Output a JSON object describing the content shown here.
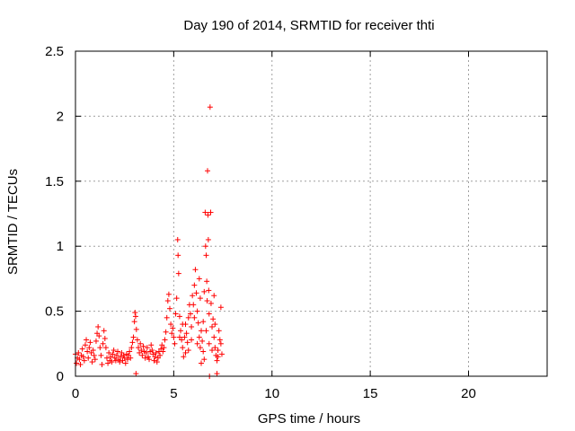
{
  "chart_data": {
    "type": "scatter",
    "title": "Day 190 of 2014, SRMTID for receiver thti",
    "xlabel": "GPS time / hours",
    "ylabel": "SRMTID / TECUs",
    "xlim": [
      0,
      24
    ],
    "ylim": [
      0,
      2.5
    ],
    "xticks": [
      0,
      5,
      10,
      15,
      20
    ],
    "yticks": [
      0,
      0.5,
      1,
      1.5,
      2,
      2.5
    ],
    "xtick_labels": [
      "0",
      "5",
      "10",
      "15",
      "20"
    ],
    "ytick_labels": [
      "0",
      "0.5",
      "1",
      "1.5",
      "2",
      "2.5"
    ],
    "grid": true,
    "marker": "+",
    "color": "#ff0000",
    "series": [
      {
        "name": "SRMTID",
        "points": [
          [
            0.0,
            0.17
          ],
          [
            0.05,
            0.1
          ],
          [
            0.1,
            0.14
          ],
          [
            0.15,
            0.18
          ],
          [
            0.2,
            0.13
          ],
          [
            0.25,
            0.09
          ],
          [
            0.3,
            0.16
          ],
          [
            0.35,
            0.21
          ],
          [
            0.4,
            0.15
          ],
          [
            0.45,
            0.12
          ],
          [
            0.5,
            0.24
          ],
          [
            0.55,
            0.28
          ],
          [
            0.6,
            0.19
          ],
          [
            0.65,
            0.14
          ],
          [
            0.7,
            0.22
          ],
          [
            0.75,
            0.26
          ],
          [
            0.8,
            0.18
          ],
          [
            0.85,
            0.11
          ],
          [
            0.9,
            0.2
          ],
          [
            0.95,
            0.16
          ],
          [
            1.0,
            0.13
          ],
          [
            1.05,
            0.27
          ],
          [
            1.1,
            0.33
          ],
          [
            1.15,
            0.38
          ],
          [
            1.2,
            0.31
          ],
          [
            1.25,
            0.22
          ],
          [
            1.3,
            0.16
          ],
          [
            1.35,
            0.09
          ],
          [
            1.4,
            0.25
          ],
          [
            1.45,
            0.35
          ],
          [
            1.5,
            0.29
          ],
          [
            1.55,
            0.22
          ],
          [
            1.6,
            0.14
          ],
          [
            1.65,
            0.1
          ],
          [
            1.7,
            0.18
          ],
          [
            1.75,
            0.12
          ],
          [
            1.8,
            0.15
          ],
          [
            1.85,
            0.11
          ],
          [
            1.9,
            0.17
          ],
          [
            1.95,
            0.2
          ],
          [
            2.0,
            0.14
          ],
          [
            2.05,
            0.12
          ],
          [
            2.1,
            0.16
          ],
          [
            2.15,
            0.19
          ],
          [
            2.2,
            0.13
          ],
          [
            2.25,
            0.11
          ],
          [
            2.3,
            0.15
          ],
          [
            2.35,
            0.18
          ],
          [
            2.4,
            0.12
          ],
          [
            2.45,
            0.16
          ],
          [
            2.5,
            0.14
          ],
          [
            2.55,
            0.1
          ],
          [
            2.6,
            0.17
          ],
          [
            2.65,
            0.13
          ],
          [
            2.7,
            0.16
          ],
          [
            2.75,
            0.19
          ],
          [
            2.8,
            0.14
          ],
          [
            2.85,
            0.22
          ],
          [
            2.9,
            0.26
          ],
          [
            2.95,
            0.3
          ],
          [
            3.0,
            0.42
          ],
          [
            3.03,
            0.49
          ],
          [
            3.06,
            0.46
          ],
          [
            3.08,
            0.02
          ],
          [
            3.1,
            0.36
          ],
          [
            3.15,
            0.28
          ],
          [
            3.2,
            0.22
          ],
          [
            3.25,
            0.18
          ],
          [
            3.3,
            0.25
          ],
          [
            3.35,
            0.2
          ],
          [
            3.4,
            0.16
          ],
          [
            3.45,
            0.23
          ],
          [
            3.5,
            0.19
          ],
          [
            3.55,
            0.14
          ],
          [
            3.6,
            0.18
          ],
          [
            3.65,
            0.22
          ],
          [
            3.7,
            0.15
          ],
          [
            3.75,
            0.13
          ],
          [
            3.8,
            0.19
          ],
          [
            3.85,
            0.24
          ],
          [
            3.9,
            0.2
          ],
          [
            3.95,
            0.17
          ],
          [
            4.0,
            0.12
          ],
          [
            4.05,
            0.15
          ],
          [
            4.1,
            0.18
          ],
          [
            4.15,
            0.11
          ],
          [
            4.2,
            0.14
          ],
          [
            4.25,
            0.19
          ],
          [
            4.3,
            0.16
          ],
          [
            4.35,
            0.21
          ],
          [
            4.4,
            0.24
          ],
          [
            4.45,
            0.19
          ],
          [
            4.5,
            0.22
          ],
          [
            4.55,
            0.28
          ],
          [
            4.6,
            0.34
          ],
          [
            4.65,
            0.45
          ],
          [
            4.7,
            0.58
          ],
          [
            4.75,
            0.63
          ],
          [
            4.8,
            0.52
          ],
          [
            4.85,
            0.4
          ],
          [
            4.9,
            0.33
          ],
          [
            4.95,
            0.37
          ],
          [
            5.0,
            0.3
          ],
          [
            5.05,
            0.25
          ],
          [
            5.1,
            0.48
          ],
          [
            5.15,
            0.6
          ],
          [
            5.2,
            1.05
          ],
          [
            5.22,
            0.93
          ],
          [
            5.25,
            0.79
          ],
          [
            5.3,
            0.46
          ],
          [
            5.35,
            0.35
          ],
          [
            5.4,
            0.28
          ],
          [
            5.45,
            0.22
          ],
          [
            5.5,
            0.15
          ],
          [
            5.55,
            0.3
          ],
          [
            5.6,
            0.4
          ],
          [
            5.65,
            0.33
          ],
          [
            5.7,
            0.26
          ],
          [
            5.75,
            0.45
          ],
          [
            5.8,
            0.55
          ],
          [
            5.85,
            0.48
          ],
          [
            5.9,
            0.38
          ],
          [
            5.95,
            0.62
          ],
          [
            6.0,
            0.55
          ],
          [
            6.05,
            0.7
          ],
          [
            6.1,
            0.82
          ],
          [
            6.15,
            0.64
          ],
          [
            6.2,
            0.5
          ],
          [
            6.25,
            0.41
          ],
          [
            6.3,
            0.3
          ],
          [
            6.35,
            0.22
          ],
          [
            6.4,
            0.35
          ],
          [
            6.45,
            0.27
          ],
          [
            6.5,
            0.19
          ],
          [
            6.55,
            0.13
          ],
          [
            6.6,
            1.26
          ],
          [
            6.62,
            1.0
          ],
          [
            6.65,
            0.93
          ],
          [
            6.68,
            0.73
          ],
          [
            6.7,
            0.58
          ],
          [
            6.72,
            1.58
          ],
          [
            6.74,
            1.24
          ],
          [
            6.76,
            1.05
          ],
          [
            6.78,
            0.66
          ],
          [
            6.8,
            0.48
          ],
          [
            6.82,
            0.0
          ],
          [
            6.85,
            2.07
          ],
          [
            6.88,
            1.26
          ],
          [
            6.9,
            0.56
          ],
          [
            6.95,
            0.38
          ],
          [
            7.0,
            0.44
          ],
          [
            7.05,
            0.3
          ],
          [
            7.1,
            0.22
          ],
          [
            7.15,
            0.16
          ],
          [
            7.2,
            0.12
          ],
          [
            7.25,
            0.2
          ],
          [
            7.3,
            0.35
          ],
          [
            7.35,
            0.28
          ],
          [
            7.4,
            0.53
          ],
          [
            7.45,
            0.17
          ],
          [
            5.3,
            0.3
          ],
          [
            5.45,
            0.4
          ],
          [
            5.6,
            0.18
          ],
          [
            5.75,
            0.2
          ],
          [
            5.9,
            0.28
          ],
          [
            6.05,
            0.45
          ],
          [
            6.2,
            0.25
          ],
          [
            6.35,
            0.6
          ],
          [
            6.5,
            0.42
          ],
          [
            6.65,
            0.35
          ],
          [
            6.8,
            0.25
          ],
          [
            6.95,
            0.2
          ],
          [
            7.1,
            0.4
          ],
          [
            7.25,
            0.15
          ],
          [
            7.4,
            0.25
          ],
          [
            7.2,
            0.02
          ],
          [
            6.4,
            0.1
          ],
          [
            6.55,
            0.65
          ],
          [
            6.3,
            0.75
          ],
          [
            7.05,
            0.62
          ]
        ]
      }
    ]
  }
}
